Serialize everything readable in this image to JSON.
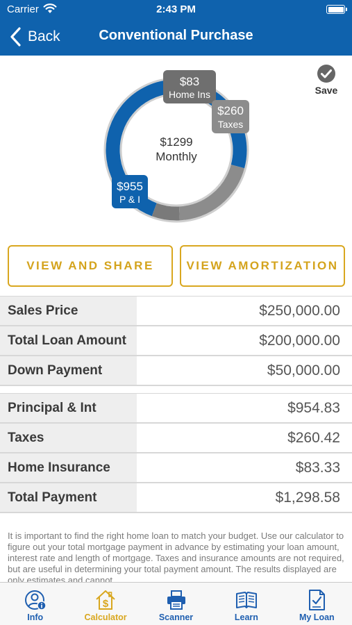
{
  "status_bar": {
    "carrier": "Carrier",
    "time": "2:43 PM"
  },
  "nav": {
    "back_label": "Back",
    "title": "Conventional Purchase"
  },
  "chart_data": {
    "type": "pie",
    "variant": "donut",
    "center_value": "$1299",
    "center_label": "Monthly",
    "slices": [
      {
        "label": "P & I",
        "value_label": "$955",
        "value": 954.83,
        "color": "#0f62ad"
      },
      {
        "label": "Taxes",
        "value_label": "$260",
        "value": 260.42,
        "color": "#8c8c8c"
      },
      {
        "label": "Home Ins",
        "value_label": "$83",
        "value": 83.33,
        "color": "#7a7a7a"
      }
    ]
  },
  "save": {
    "label": "Save"
  },
  "buttons": {
    "view_share": "VIEW AND SHARE",
    "view_amortization": "VIEW AMORTIZATION"
  },
  "loan_table": [
    {
      "label": "Sales Price",
      "value": "$250,000.00"
    },
    {
      "label": "Total Loan Amount",
      "value": "$200,000.00"
    },
    {
      "label": "Down Payment",
      "value": "$50,000.00"
    }
  ],
  "payment_table": [
    {
      "label": "Principal & Int",
      "value": "$954.83"
    },
    {
      "label": "Taxes",
      "value": "$260.42"
    },
    {
      "label": "Home Insurance",
      "value": "$83.33"
    },
    {
      "label": "Total Payment",
      "value": "$1,298.58"
    }
  ],
  "disclaimer": "It is important to find the right home loan to match your budget. Use our calculator to figure out your total mortgage payment in advance by estimating your loan amount, interest rate and length of mortgage. Taxes and insurance amounts are not required, but are useful in determining your total payment amount.  The results displayed are only estimates and cannot",
  "tabs": [
    {
      "label": "Info",
      "icon": "info-person-icon",
      "active": false
    },
    {
      "label": "Calculator",
      "icon": "house-dollar-icon",
      "active": true
    },
    {
      "label": "Scanner",
      "icon": "printer-icon",
      "active": false
    },
    {
      "label": "Learn",
      "icon": "open-book-icon",
      "active": false
    },
    {
      "label": "My Loan",
      "icon": "document-check-icon",
      "active": false
    }
  ],
  "colors": {
    "brand_blue": "#0f62ad",
    "accent_gold": "#d9a71f"
  }
}
